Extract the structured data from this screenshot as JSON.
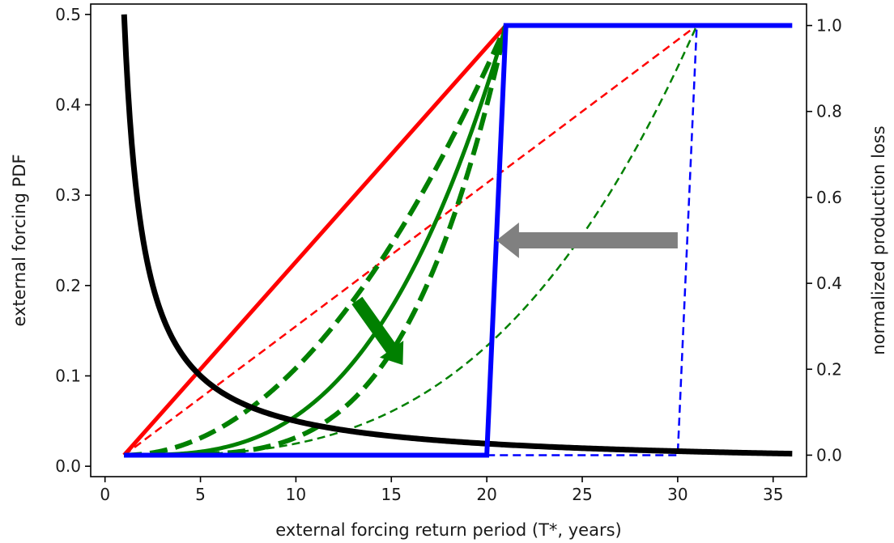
{
  "chart_data": {
    "type": "line",
    "xlabel": "external forcing return period (T*, years)",
    "ylabel_left": "external forcing PDF",
    "ylabel_right": "normalized production loss",
    "xlim": [
      -0.75,
      36.75
    ],
    "ylim_left": [
      -0.0115,
      0.5115
    ],
    "ylim_right": [
      -0.05,
      1.05
    ],
    "xticks": [
      "0",
      "5",
      "10",
      "15",
      "20",
      "25",
      "30",
      "35"
    ],
    "yticks_left": [
      "0.0",
      "0.1",
      "0.2",
      "0.3",
      "0.4",
      "0.5"
    ],
    "yticks_right": [
      "0.0",
      "0.2",
      "0.4",
      "0.6",
      "0.8",
      "1.0"
    ],
    "grid": false,
    "colors": {
      "pdf": "#000000",
      "linear": "#ff0000",
      "power": "#008000",
      "step": "#0000ff",
      "arrow_gray": "#808080"
    },
    "series": [
      {
        "axis": "left",
        "color": "#000000",
        "style": "solid",
        "width": 7,
        "fn": "pdf",
        "x": [
          1,
          2,
          3,
          4,
          5,
          6,
          8,
          10,
          12,
          15,
          20,
          25,
          30,
          36
        ],
        "y": [
          0.5,
          0.25,
          0.1667,
          0.125,
          0.1,
          0.0833,
          0.0625,
          0.05,
          0.0417,
          0.0333,
          0.025,
          0.02,
          0.0167,
          0.0139
        ]
      },
      {
        "axis": "right",
        "color": "#ff0000",
        "style": "solid",
        "width": 5,
        "x": [
          1,
          21
        ],
        "y": [
          0,
          1
        ]
      },
      {
        "axis": "right",
        "color": "#ff0000",
        "style": "dashed",
        "width": 2.5,
        "x": [
          1,
          31
        ],
        "y": [
          0,
          1
        ]
      },
      {
        "axis": "right",
        "color": "#008000",
        "style": "dashed",
        "width": 6,
        "fn": "power",
        "x0": 1,
        "x1": 21,
        "power": 2
      },
      {
        "axis": "right",
        "color": "#008000",
        "style": "solid",
        "width": 5,
        "fn": "power",
        "x0": 1,
        "x1": 21,
        "power": 3
      },
      {
        "axis": "right",
        "color": "#008000",
        "style": "dashed",
        "width": 6,
        "fn": "power",
        "x0": 1,
        "x1": 21,
        "power": 4
      },
      {
        "axis": "right",
        "color": "#008000",
        "style": "dashed",
        "width": 2.5,
        "fn": "power",
        "x0": 1,
        "x1": 31,
        "power": 3
      },
      {
        "axis": "right",
        "color": "#0000ff",
        "style": "solid",
        "width": 6,
        "x": [
          1,
          20,
          21,
          36
        ],
        "y": [
          0,
          0,
          1,
          1
        ]
      },
      {
        "axis": "right",
        "color": "#0000ff",
        "style": "dashed",
        "width": 2.5,
        "x": [
          1,
          30,
          31
        ],
        "y": [
          0,
          0,
          1
        ]
      }
    ],
    "annotations": [
      {
        "type": "arrow",
        "color": "#808080",
        "from": [
          30,
          0.5
        ],
        "to": [
          20.5,
          0.5
        ],
        "axis": "right"
      },
      {
        "type": "arrow",
        "color": "#008000",
        "from": [
          13.2,
          0.36
        ],
        "to": [
          15.6,
          0.21
        ],
        "axis": "right"
      }
    ]
  }
}
